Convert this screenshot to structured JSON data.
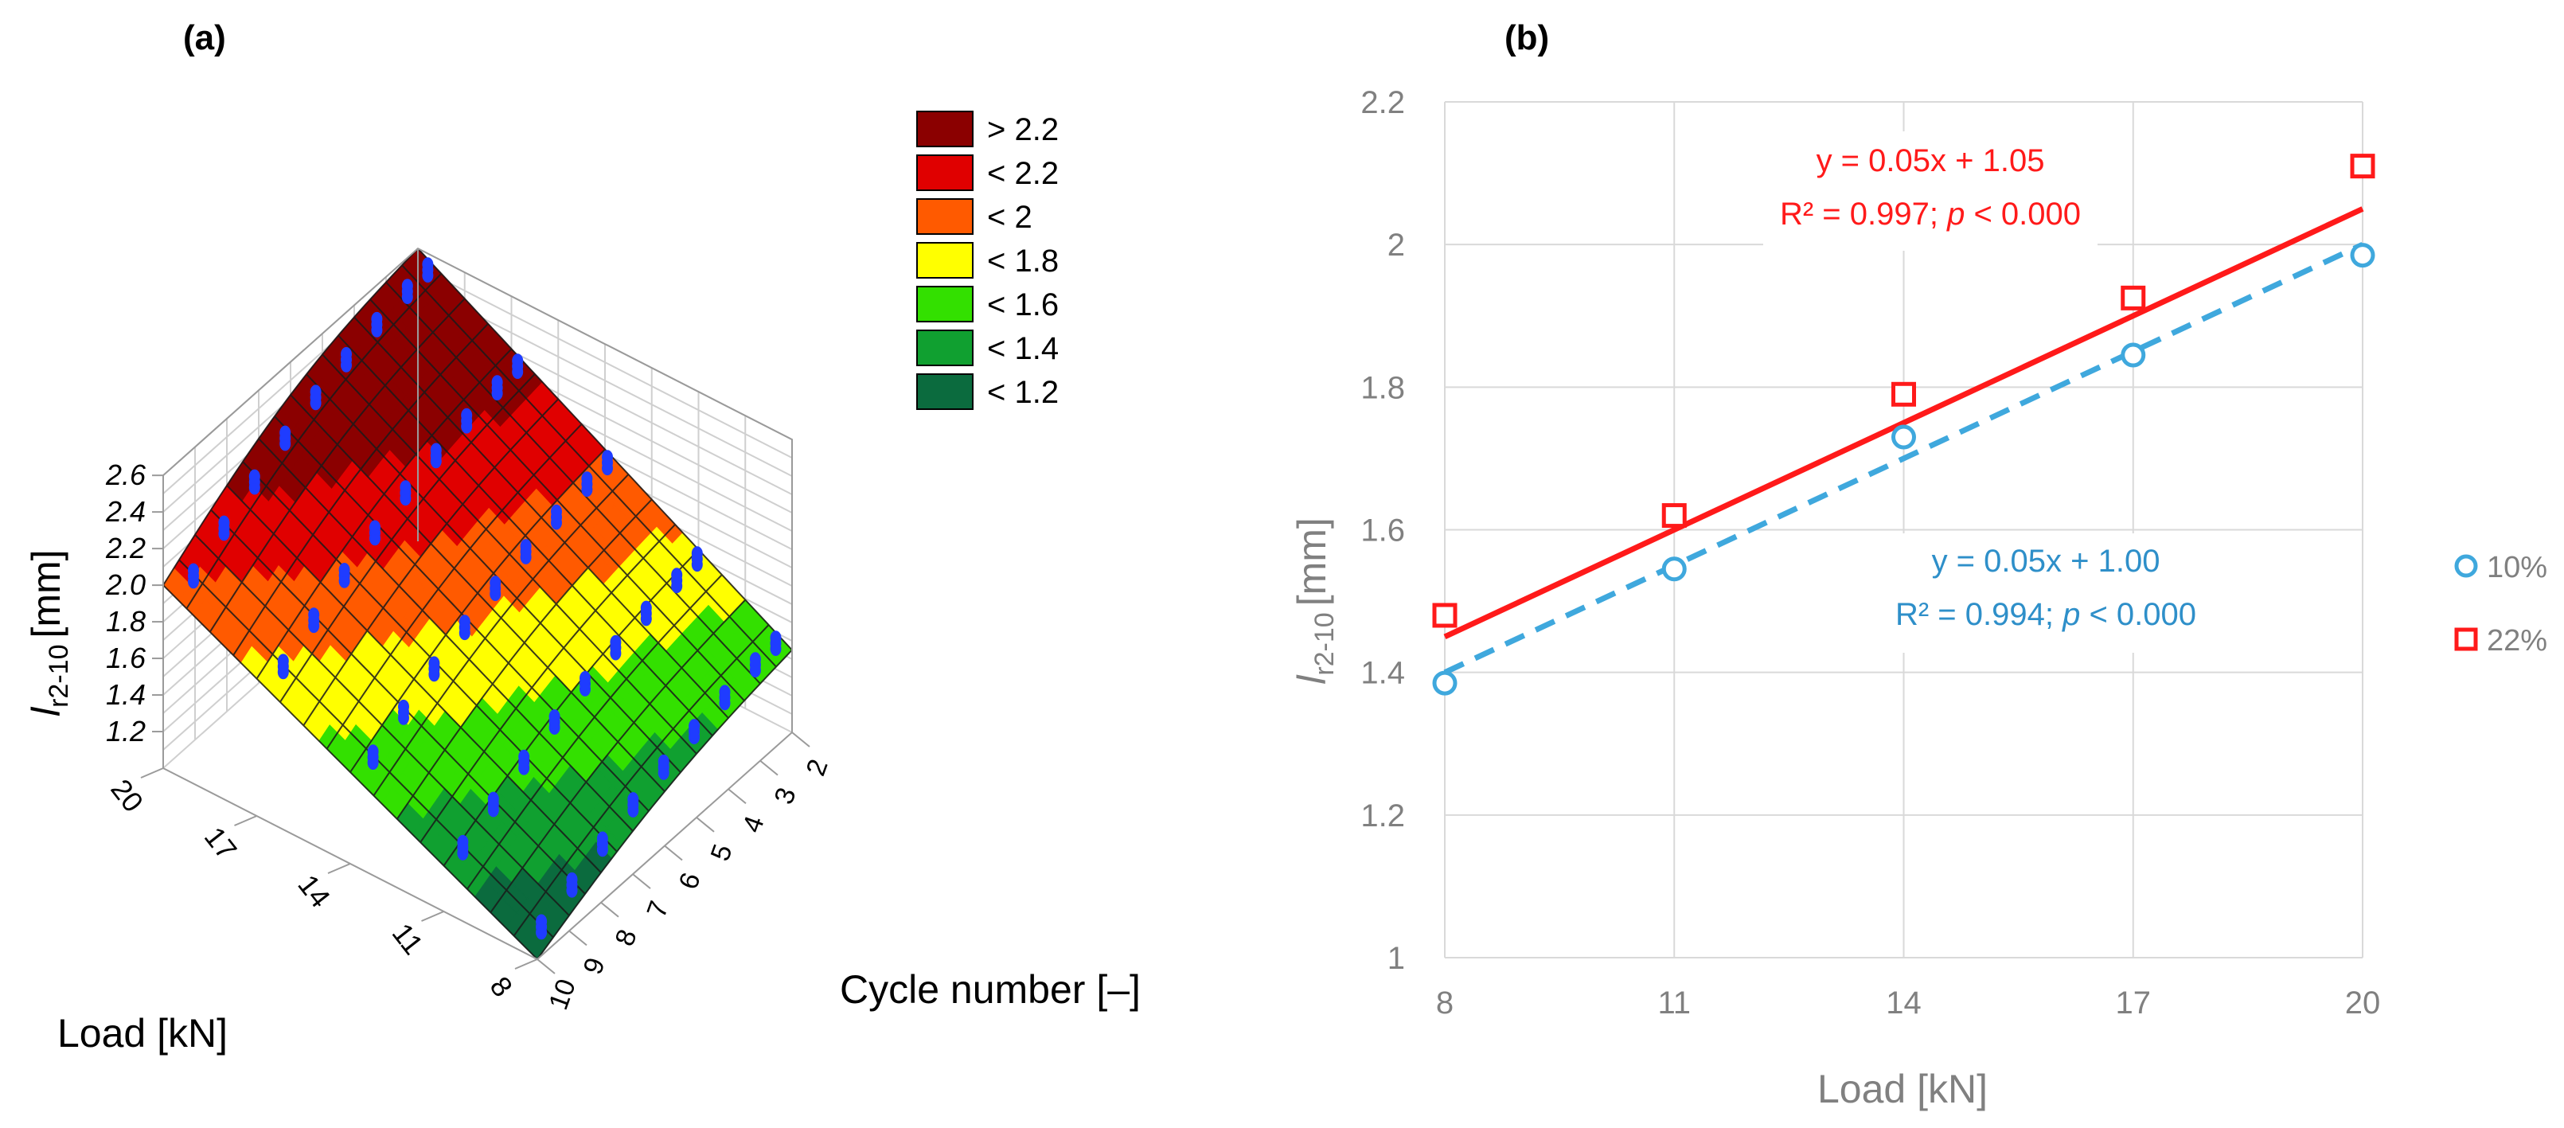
{
  "panel_a": {
    "label": "(a)",
    "ylabel_main": "l",
    "ylabel_sub": "r2-10",
    "ylabel_unit": "[mm]",
    "xlabel": "Cycle number [–]",
    "load_label": "Load [kN]"
  },
  "panel_b": {
    "label": "(b)",
    "ylabel_main": "l",
    "ylabel_sub": "r2-10",
    "ylabel_unit": "[mm]",
    "eq_22_line1": "y = 0.05x + 1.05",
    "eq_22_r2": "R² = 0.997; ",
    "eq_22_p": "p",
    "eq_22_tail": " < 0.000",
    "eq_10_line1": "y = 0.05x + 1.00",
    "eq_10_r2": "R² = 0.994; ",
    "eq_10_p": "p",
    "eq_10_tail": " < 0.000"
  },
  "chart_data": [
    {
      "type": "surface3d",
      "title": "(a)",
      "xlabel": "Cycle number [–]",
      "ylabel": "Load [kN]",
      "zlabel": "lr2-10 [mm]",
      "z_ticks": [
        "1.2",
        "1.4",
        "1.6",
        "1.8",
        "2.0",
        "2.2",
        "2.4",
        "2.6"
      ],
      "load_ticks": [
        "20",
        "17",
        "14",
        "11",
        "8"
      ],
      "cycle_ticks": [
        "2",
        "3",
        "4",
        "5",
        "6",
        "7",
        "8",
        "9",
        "10"
      ],
      "legend": {
        "labels": [
          "> 2.2",
          "< 2.2",
          "< 2",
          "< 1.8",
          "< 1.6",
          "< 1.4",
          "< 1.2"
        ],
        "colors": [
          "#8b0000",
          "#e00000",
          "#ff5a00",
          "#ffff00",
          "#33e000",
          "#10a030",
          "#0b6b3e"
        ]
      },
      "surface_edges": {
        "corner_load20_cycle10": 2.0,
        "corner_load20_cycle2": 2.6,
        "corner_load8_cycle2": 1.45,
        "corner_load8_cycle10": 1.0
      }
    },
    {
      "type": "scatter",
      "title": "(b)",
      "xlabel": "Load [kN]",
      "ylabel": "lr2-10 [mm]",
      "x": [
        8,
        11,
        14,
        17,
        20
      ],
      "xlim": [
        8,
        20
      ],
      "ylim": [
        1,
        2.2
      ],
      "x_ticks": [
        8,
        11,
        14,
        17,
        20
      ],
      "y_ticks": [
        1,
        1.2,
        1.4,
        1.6,
        1.8,
        2,
        2.2
      ],
      "y_tick_labels": [
        "1",
        "1.2",
        "1.4",
        "1.6",
        "1.8",
        "2",
        "2.2"
      ],
      "series": [
        {
          "name": "10%",
          "marker": "circle",
          "color": "#3fa8dd",
          "values": [
            1.385,
            1.545,
            1.73,
            1.845,
            1.985
          ],
          "trend": {
            "slope": 0.05,
            "intercept": 1.0,
            "style": "dashed"
          }
        },
        {
          "name": "22%",
          "marker": "square",
          "color": "#ff1a1a",
          "values": [
            1.48,
            1.62,
            1.79,
            1.925,
            2.11
          ],
          "trend": {
            "slope": 0.05,
            "intercept": 1.05,
            "style": "solid"
          }
        }
      ]
    }
  ]
}
